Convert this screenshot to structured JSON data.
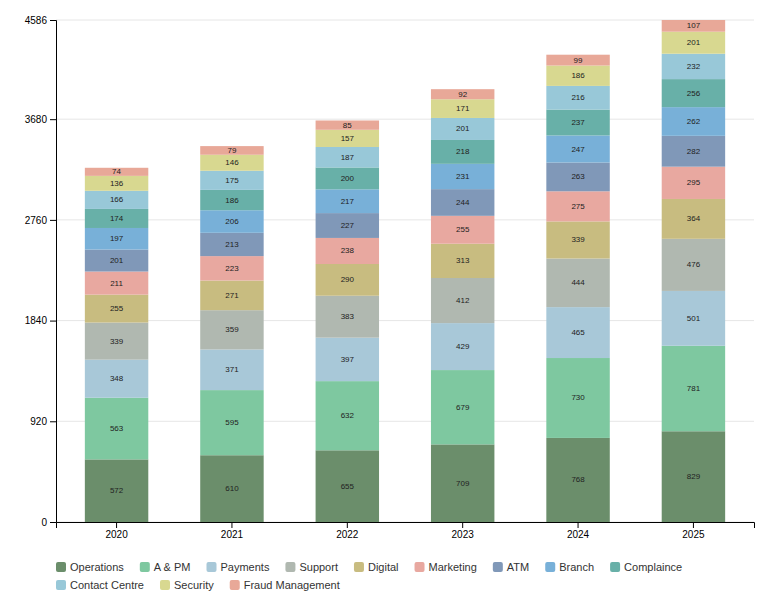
{
  "chart_data": {
    "type": "bar",
    "categories": [
      "2020",
      "2021",
      "2022",
      "2023",
      "2024",
      "2025"
    ],
    "series": [
      {
        "name": "Operations",
        "color": "#6B8E6B",
        "values": [
          572,
          610,
          655,
          709,
          768,
          829
        ]
      },
      {
        "name": "A & PM",
        "color": "#7EC8A0",
        "values": [
          563,
          595,
          632,
          679,
          730,
          781
        ]
      },
      {
        "name": "Payments",
        "color": "#A8C8D8",
        "values": [
          348,
          371,
          397,
          429,
          465,
          501
        ]
      },
      {
        "name": "Support",
        "color": "#B0B8B0",
        "values": [
          339,
          359,
          383,
          412,
          444,
          476
        ]
      },
      {
        "name": "Digital",
        "color": "#C8BC80",
        "values": [
          255,
          271,
          290,
          313,
          339,
          364
        ]
      },
      {
        "name": "Marketing",
        "color": "#E8A8A0",
        "values": [
          211,
          223,
          238,
          255,
          275,
          295
        ]
      },
      {
        "name": "ATM",
        "color": "#8098B8",
        "values": [
          201,
          213,
          227,
          244,
          263,
          282
        ]
      },
      {
        "name": "Branch",
        "color": "#78B0D8",
        "values": [
          197,
          206,
          217,
          231,
          247,
          262
        ]
      },
      {
        "name": "Complaince",
        "color": "#68B0A8",
        "values": [
          174,
          186,
          200,
          218,
          237,
          256
        ]
      },
      {
        "name": "Contact Centre",
        "color": "#98C8D8",
        "values": [
          166,
          175,
          187,
          201,
          216,
          232
        ]
      },
      {
        "name": "Security",
        "color": "#D8D890",
        "values": [
          136,
          146,
          157,
          171,
          186,
          201
        ]
      },
      {
        "name": "Fraud Management",
        "color": "#E8A898",
        "values": [
          74,
          79,
          85,
          92,
          99,
          107
        ]
      }
    ],
    "stacked": true,
    "ylim": [
      0,
      4586
    ],
    "yticks": [
      0,
      920,
      1840,
      2760,
      3680,
      4586
    ],
    "grid": true,
    "legend": "bottom",
    "data_labels": true
  }
}
